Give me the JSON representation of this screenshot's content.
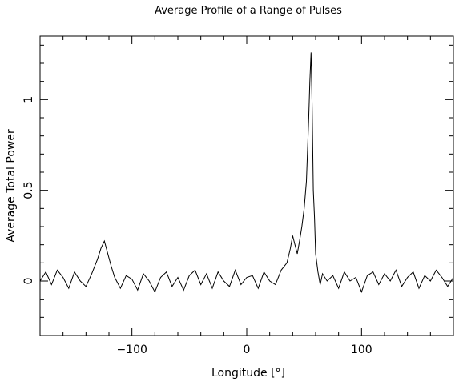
{
  "chart_data": {
    "type": "line",
    "title": "Average Profile of a Range of Pulses",
    "xlabel": "Longitude [°]",
    "ylabel": "Average Total Power",
    "xlim": [
      -180,
      180
    ],
    "ylim": [
      -0.3,
      1.35
    ],
    "x_ticks": [
      {
        "value": -100,
        "label": "−100"
      },
      {
        "value": 0,
        "label": "0"
      },
      {
        "value": 100,
        "label": "100"
      }
    ],
    "y_ticks": [
      {
        "value": 0,
        "label": "0"
      },
      {
        "value": 0.5,
        "label": "0.5"
      },
      {
        "value": 1,
        "label": "1"
      }
    ],
    "grid": false,
    "series": [
      {
        "name": "",
        "color": "#000000",
        "x": [
          -180,
          -175,
          -170,
          -165,
          -160,
          -155,
          -150,
          -145,
          -140,
          -135,
          -130,
          -127,
          -124,
          -121,
          -118,
          -115,
          -110,
          -105,
          -100,
          -95,
          -90,
          -85,
          -80,
          -75,
          -70,
          -65,
          -60,
          -55,
          -50,
          -45,
          -40,
          -35,
          -30,
          -25,
          -20,
          -15,
          -10,
          -5,
          0,
          5,
          10,
          15,
          20,
          25,
          30,
          35,
          38,
          40,
          42,
          44,
          46,
          48,
          50,
          52,
          54,
          55,
          56,
          57,
          58,
          59,
          60,
          62,
          64,
          66,
          70,
          75,
          80,
          85,
          90,
          95,
          100,
          105,
          110,
          115,
          120,
          125,
          130,
          135,
          140,
          145,
          150,
          155,
          160,
          165,
          170,
          175,
          180
        ],
        "y": [
          0.0,
          0.05,
          -0.02,
          0.06,
          0.02,
          -0.04,
          0.05,
          0.0,
          -0.03,
          0.04,
          0.12,
          0.18,
          0.22,
          0.15,
          0.08,
          0.02,
          -0.04,
          0.03,
          0.01,
          -0.05,
          0.04,
          0.0,
          -0.06,
          0.02,
          0.05,
          -0.03,
          0.02,
          -0.05,
          0.03,
          0.06,
          -0.02,
          0.04,
          -0.04,
          0.05,
          0.0,
          -0.03,
          0.06,
          -0.02,
          0.02,
          0.03,
          -0.04,
          0.05,
          0.0,
          -0.02,
          0.06,
          0.1,
          0.18,
          0.25,
          0.2,
          0.15,
          0.22,
          0.3,
          0.4,
          0.55,
          0.9,
          1.1,
          1.26,
          0.95,
          0.5,
          0.35,
          0.15,
          0.05,
          -0.02,
          0.04,
          0.0,
          0.03,
          -0.04,
          0.05,
          0.0,
          0.02,
          -0.06,
          0.03,
          0.05,
          -0.02,
          0.04,
          0.0,
          0.06,
          -0.03,
          0.02,
          0.05,
          -0.04,
          0.03,
          0.0,
          0.06,
          0.02,
          -0.03,
          0.02
        ]
      }
    ]
  }
}
